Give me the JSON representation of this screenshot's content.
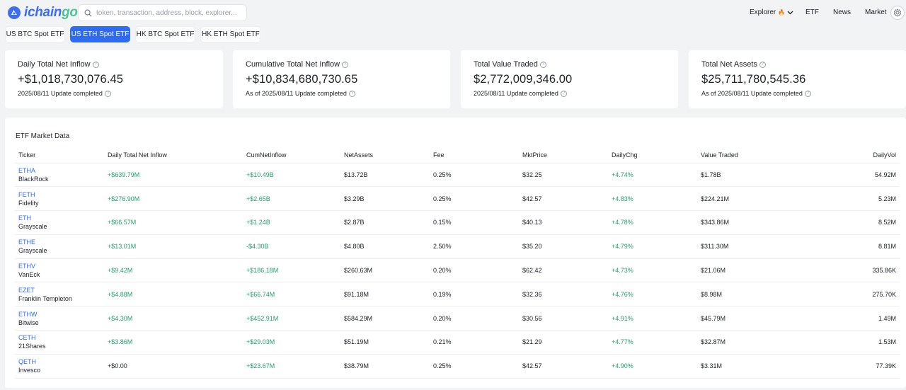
{
  "header": {
    "logo_text_a": "ichain",
    "logo_text_b": "go",
    "search_placeholder": "token, transaction, address, block, explorer...",
    "nav": {
      "explorer": "Explorer",
      "explorer_badge": "🔥",
      "etf": "ETF",
      "news": "News",
      "market": "Market"
    }
  },
  "tabs": [
    {
      "label": "US BTC Spot ETF",
      "active": false
    },
    {
      "label": "US ETH Spot ETF",
      "active": true
    },
    {
      "label": "HK BTC Spot ETF",
      "active": false
    },
    {
      "label": "HK ETH Spot ETF",
      "active": false
    }
  ],
  "cards": [
    {
      "title": "Daily Total Net Inflow",
      "value": "+$1,018,730,076.45",
      "sub": "2025/08/11 Update completed"
    },
    {
      "title": "Cumulative Total Net Inflow",
      "value": "+$10,834,680,730.65",
      "sub": "As of 2025/08/11 Update completed"
    },
    {
      "title": "Total Value Traded",
      "value": "$2,772,009,346.00",
      "sub": "2025/08/11 Update completed"
    },
    {
      "title": "Total Net Assets",
      "value": "$25,711,780,545.36",
      "sub": "As of 2025/08/11 Update completed"
    }
  ],
  "market": {
    "title": "ETF Market Data",
    "columns": [
      "Ticker",
      "Daily Total Net Inflow",
      "CumNetInflow",
      "NetAssets",
      "Fee",
      "MktPrice",
      "DailyChg",
      "Value Traded",
      "DailyVol"
    ],
    "rows": [
      {
        "ticker": "ETHA",
        "issuer": "BlackRock",
        "inflow": "+$639.79M",
        "cum": "+$10.49B",
        "assets": "$13.72B",
        "fee": "0.25%",
        "price": "$32.25",
        "chg": "+4.74%",
        "traded": "$1.78B",
        "vol": "54.92M"
      },
      {
        "ticker": "FETH",
        "issuer": "Fidelity",
        "inflow": "+$276.90M",
        "cum": "+$2.65B",
        "assets": "$3.29B",
        "fee": "0.25%",
        "price": "$42.57",
        "chg": "+4.83%",
        "traded": "$224.21M",
        "vol": "5.23M"
      },
      {
        "ticker": "ETH",
        "issuer": "Grayscale",
        "inflow": "+$66.57M",
        "cum": "+$1.24B",
        "assets": "$2.87B",
        "fee": "0.15%",
        "price": "$40.13",
        "chg": "+4.78%",
        "traded": "$343.86M",
        "vol": "8.52M"
      },
      {
        "ticker": "ETHE",
        "issuer": "Grayscale",
        "inflow": "+$13.01M",
        "cum": "-$4.30B",
        "assets": "$4.80B",
        "fee": "2.50%",
        "price": "$35.20",
        "chg": "+4.79%",
        "traded": "$311.30M",
        "vol": "8.81M"
      },
      {
        "ticker": "ETHV",
        "issuer": "VanEck",
        "inflow": "+$9.42M",
        "cum": "+$186.18M",
        "assets": "$260.63M",
        "fee": "0.20%",
        "price": "$62.42",
        "chg": "+4.73%",
        "traded": "$21.06M",
        "vol": "335.86K"
      },
      {
        "ticker": "EZET",
        "issuer": "Franklin Templeton",
        "inflow": "+$4.88M",
        "cum": "+$66.74M",
        "assets": "$91.18M",
        "fee": "0.19%",
        "price": "$32.36",
        "chg": "+4.76%",
        "traded": "$8.98M",
        "vol": "275.70K"
      },
      {
        "ticker": "ETHW",
        "issuer": "Bitwise",
        "inflow": "+$4.30M",
        "cum": "+$452.91M",
        "assets": "$584.29M",
        "fee": "0.20%",
        "price": "$30.56",
        "chg": "+4.91%",
        "traded": "$45.79M",
        "vol": "1.49M"
      },
      {
        "ticker": "CETH",
        "issuer": "21Shares",
        "inflow": "+$3.86M",
        "cum": "+$29.03M",
        "assets": "$51.19M",
        "fee": "0.21%",
        "price": "$21.29",
        "chg": "+4.77%",
        "traded": "$32.87M",
        "vol": "1.53M"
      },
      {
        "ticker": "QETH",
        "issuer": "Invesco",
        "inflow": "+$0.00",
        "cum": "+$23.67M",
        "assets": "$38.79M",
        "fee": "0.25%",
        "price": "$42.57",
        "chg": "+4.90%",
        "traded": "$3.31M",
        "vol": "77.39K"
      }
    ]
  }
}
